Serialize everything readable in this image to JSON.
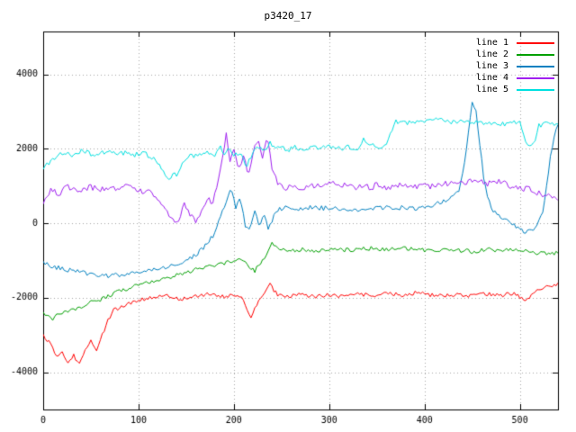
{
  "window": {
    "title": "p3420_17"
  },
  "chart_data": {
    "type": "line",
    "title": "p3420_17",
    "xlabel": "",
    "ylabel": "",
    "xlim": [
      0,
      540
    ],
    "ylim": [
      -5000,
      5150
    ],
    "xticks": [
      0,
      100,
      200,
      300,
      400,
      500
    ],
    "yticks": [
      -4000,
      -2000,
      0,
      2000,
      4000
    ],
    "grid": true,
    "grid_style": "dotted",
    "legend_position": "top-right",
    "background": "#ffffff",
    "axis_color": "#000000",
    "grid_color": "#a8a8a8",
    "series": [
      {
        "name": "line 1",
        "color": "#ff0000",
        "noise": 55,
        "points": [
          [
            0,
            -3000
          ],
          [
            8,
            -3250
          ],
          [
            14,
            -3600
          ],
          [
            20,
            -3450
          ],
          [
            26,
            -3750
          ],
          [
            32,
            -3550
          ],
          [
            38,
            -3800
          ],
          [
            44,
            -3400
          ],
          [
            50,
            -3150
          ],
          [
            56,
            -3400
          ],
          [
            62,
            -3000
          ],
          [
            68,
            -2600
          ],
          [
            75,
            -2300
          ],
          [
            82,
            -2250
          ],
          [
            90,
            -2150
          ],
          [
            100,
            -2050
          ],
          [
            115,
            -2000
          ],
          [
            130,
            -1950
          ],
          [
            145,
            -2050
          ],
          [
            160,
            -1950
          ],
          [
            175,
            -1900
          ],
          [
            190,
            -1980
          ],
          [
            205,
            -1900
          ],
          [
            212,
            -2200
          ],
          [
            218,
            -2500
          ],
          [
            225,
            -2150
          ],
          [
            232,
            -1900
          ],
          [
            238,
            -1650
          ],
          [
            245,
            -1900
          ],
          [
            255,
            -1980
          ],
          [
            270,
            -1920
          ],
          [
            285,
            -1960
          ],
          [
            300,
            -1930
          ],
          [
            315,
            -1960
          ],
          [
            330,
            -1900
          ],
          [
            345,
            -1950
          ],
          [
            360,
            -1880
          ],
          [
            375,
            -1930
          ],
          [
            390,
            -1870
          ],
          [
            405,
            -1920
          ],
          [
            420,
            -1950
          ],
          [
            435,
            -1900
          ],
          [
            450,
            -1960
          ],
          [
            465,
            -1900
          ],
          [
            480,
            -1930
          ],
          [
            495,
            -1880
          ],
          [
            505,
            -2080
          ],
          [
            515,
            -1850
          ],
          [
            525,
            -1720
          ],
          [
            535,
            -1680
          ],
          [
            540,
            -1620
          ]
        ]
      },
      {
        "name": "line 2",
        "color": "#00a000",
        "noise": 55,
        "points": [
          [
            0,
            -2420
          ],
          [
            10,
            -2550
          ],
          [
            20,
            -2400
          ],
          [
            30,
            -2350
          ],
          [
            40,
            -2250
          ],
          [
            50,
            -2100
          ],
          [
            60,
            -2050
          ],
          [
            70,
            -1950
          ],
          [
            80,
            -1800
          ],
          [
            90,
            -1750
          ],
          [
            100,
            -1650
          ],
          [
            110,
            -1600
          ],
          [
            120,
            -1520
          ],
          [
            130,
            -1450
          ],
          [
            140,
            -1400
          ],
          [
            150,
            -1320
          ],
          [
            160,
            -1250
          ],
          [
            170,
            -1180
          ],
          [
            180,
            -1120
          ],
          [
            190,
            -1080
          ],
          [
            200,
            -1020
          ],
          [
            210,
            -1000
          ],
          [
            216,
            -1220
          ],
          [
            222,
            -1280
          ],
          [
            228,
            -1050
          ],
          [
            234,
            -900
          ],
          [
            240,
            -560
          ],
          [
            246,
            -680
          ],
          [
            255,
            -740
          ],
          [
            270,
            -700
          ],
          [
            285,
            -730
          ],
          [
            300,
            -690
          ],
          [
            315,
            -720
          ],
          [
            330,
            -700
          ],
          [
            345,
            -670
          ],
          [
            360,
            -700
          ],
          [
            375,
            -660
          ],
          [
            390,
            -700
          ],
          [
            405,
            -730
          ],
          [
            420,
            -700
          ],
          [
            435,
            -720
          ],
          [
            450,
            -760
          ],
          [
            465,
            -700
          ],
          [
            480,
            -730
          ],
          [
            495,
            -700
          ],
          [
            510,
            -760
          ],
          [
            520,
            -820
          ],
          [
            530,
            -790
          ],
          [
            540,
            -810
          ]
        ]
      },
      {
        "name": "line 3",
        "color": "#0080c0",
        "noise": 65,
        "points": [
          [
            0,
            -1080
          ],
          [
            15,
            -1200
          ],
          [
            30,
            -1280
          ],
          [
            45,
            -1350
          ],
          [
            60,
            -1430
          ],
          [
            75,
            -1400
          ],
          [
            90,
            -1330
          ],
          [
            105,
            -1280
          ],
          [
            120,
            -1220
          ],
          [
            135,
            -1120
          ],
          [
            150,
            -980
          ],
          [
            160,
            -850
          ],
          [
            168,
            -680
          ],
          [
            175,
            -450
          ],
          [
            182,
            -150
          ],
          [
            188,
            350
          ],
          [
            193,
            650
          ],
          [
            197,
            880
          ],
          [
            202,
            450
          ],
          [
            207,
            650
          ],
          [
            212,
            -80
          ],
          [
            217,
            -180
          ],
          [
            222,
            350
          ],
          [
            227,
            -60
          ],
          [
            232,
            250
          ],
          [
            236,
            -220
          ],
          [
            240,
            80
          ],
          [
            245,
            320
          ],
          [
            252,
            420
          ],
          [
            262,
            380
          ],
          [
            275,
            430
          ],
          [
            290,
            400
          ],
          [
            305,
            430
          ],
          [
            320,
            370
          ],
          [
            332,
            300
          ],
          [
            344,
            400
          ],
          [
            356,
            430
          ],
          [
            368,
            390
          ],
          [
            380,
            430
          ],
          [
            392,
            400
          ],
          [
            404,
            430
          ],
          [
            412,
            520
          ],
          [
            420,
            580
          ],
          [
            428,
            700
          ],
          [
            436,
            900
          ],
          [
            442,
            1600
          ],
          [
            446,
            2400
          ],
          [
            450,
            3300
          ],
          [
            454,
            3050
          ],
          [
            458,
            2100
          ],
          [
            462,
            1250
          ],
          [
            467,
            600
          ],
          [
            473,
            300
          ],
          [
            481,
            130
          ],
          [
            490,
            20
          ],
          [
            498,
            -120
          ],
          [
            506,
            -250
          ],
          [
            512,
            -160
          ],
          [
            518,
            -60
          ],
          [
            524,
            300
          ],
          [
            530,
            1400
          ],
          [
            535,
            2250
          ],
          [
            540,
            2650
          ]
        ]
      },
      {
        "name": "line 4",
        "color": "#a020f0",
        "noise": 85,
        "points": [
          [
            0,
            580
          ],
          [
            8,
            880
          ],
          [
            16,
            780
          ],
          [
            24,
            980
          ],
          [
            32,
            920
          ],
          [
            40,
            880
          ],
          [
            48,
            980
          ],
          [
            56,
            930
          ],
          [
            64,
            890
          ],
          [
            72,
            980
          ],
          [
            80,
            930
          ],
          [
            88,
            980
          ],
          [
            96,
            920
          ],
          [
            104,
            880
          ],
          [
            112,
            820
          ],
          [
            120,
            680
          ],
          [
            128,
            350
          ],
          [
            136,
            120
          ],
          [
            142,
            60
          ],
          [
            148,
            480
          ],
          [
            154,
            220
          ],
          [
            160,
            20
          ],
          [
            166,
            320
          ],
          [
            172,
            680
          ],
          [
            178,
            520
          ],
          [
            183,
            1150
          ],
          [
            188,
            1800
          ],
          [
            192,
            2400
          ],
          [
            196,
            1650
          ],
          [
            200,
            2050
          ],
          [
            205,
            1400
          ],
          [
            210,
            1850
          ],
          [
            215,
            1300
          ],
          [
            220,
            1900
          ],
          [
            225,
            2300
          ],
          [
            230,
            1700
          ],
          [
            235,
            2250
          ],
          [
            240,
            1500
          ],
          [
            246,
            1120
          ],
          [
            252,
            920
          ],
          [
            262,
            1000
          ],
          [
            275,
            960
          ],
          [
            290,
            1010
          ],
          [
            305,
            1050
          ],
          [
            320,
            990
          ],
          [
            335,
            950
          ],
          [
            350,
            1010
          ],
          [
            365,
            960
          ],
          [
            380,
            1050
          ],
          [
            395,
            1000
          ],
          [
            410,
            1000
          ],
          [
            420,
            1100
          ],
          [
            430,
            1060
          ],
          [
            440,
            1110
          ],
          [
            450,
            1150
          ],
          [
            460,
            1100
          ],
          [
            470,
            1060
          ],
          [
            480,
            1110
          ],
          [
            490,
            1010
          ],
          [
            500,
            960
          ],
          [
            510,
            900
          ],
          [
            520,
            820
          ],
          [
            530,
            720
          ],
          [
            540,
            640
          ]
        ]
      },
      {
        "name": "line 5",
        "color": "#00e0e0",
        "noise": 65,
        "points": [
          [
            0,
            1480
          ],
          [
            8,
            1680
          ],
          [
            16,
            1830
          ],
          [
            24,
            1900
          ],
          [
            32,
            1820
          ],
          [
            40,
            1950
          ],
          [
            48,
            1880
          ],
          [
            56,
            1840
          ],
          [
            64,
            1900
          ],
          [
            72,
            1950
          ],
          [
            80,
            1860
          ],
          [
            88,
            1910
          ],
          [
            96,
            1840
          ],
          [
            104,
            1890
          ],
          [
            112,
            1800
          ],
          [
            120,
            1650
          ],
          [
            126,
            1380
          ],
          [
            131,
            1200
          ],
          [
            136,
            1320
          ],
          [
            141,
            1260
          ],
          [
            146,
            1580
          ],
          [
            152,
            1780
          ],
          [
            160,
            1840
          ],
          [
            170,
            1890
          ],
          [
            180,
            1850
          ],
          [
            185,
            2080
          ],
          [
            190,
            1900
          ],
          [
            195,
            2090
          ],
          [
            200,
            1820
          ],
          [
            207,
            1860
          ],
          [
            213,
            1540
          ],
          [
            219,
            1800
          ],
          [
            225,
            2080
          ],
          [
            231,
            1900
          ],
          [
            237,
            2180
          ],
          [
            243,
            2000
          ],
          [
            249,
            2080
          ],
          [
            255,
            1920
          ],
          [
            262,
            2060
          ],
          [
            270,
            2000
          ],
          [
            280,
            2050
          ],
          [
            290,
            2010
          ],
          [
            300,
            2060
          ],
          [
            310,
            2000
          ],
          [
            320,
            2040
          ],
          [
            330,
            2000
          ],
          [
            336,
            2290
          ],
          [
            342,
            2100
          ],
          [
            350,
            2080
          ],
          [
            358,
            2050
          ],
          [
            364,
            2400
          ],
          [
            370,
            2720
          ],
          [
            378,
            2680
          ],
          [
            386,
            2740
          ],
          [
            395,
            2700
          ],
          [
            405,
            2760
          ],
          [
            415,
            2800
          ],
          [
            425,
            2740
          ],
          [
            435,
            2700
          ],
          [
            445,
            2750
          ],
          [
            455,
            2700
          ],
          [
            465,
            2650
          ],
          [
            475,
            2700
          ],
          [
            485,
            2660
          ],
          [
            493,
            2720
          ],
          [
            500,
            2690
          ],
          [
            505,
            2230
          ],
          [
            510,
            2110
          ],
          [
            515,
            2160
          ],
          [
            520,
            2620
          ],
          [
            527,
            2690
          ],
          [
            534,
            2660
          ],
          [
            540,
            2700
          ]
        ]
      }
    ]
  }
}
